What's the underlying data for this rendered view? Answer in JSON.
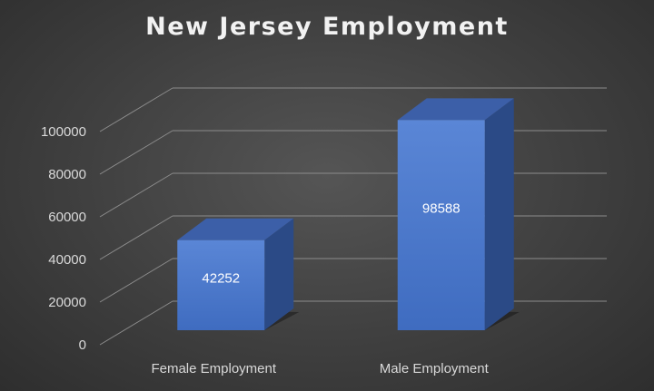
{
  "chart_data": {
    "type": "bar",
    "title": "New Jersey Employment",
    "categories": [
      "Female Employment",
      "Male Employment"
    ],
    "values": [
      42252,
      98588
    ],
    "data_labels": [
      "42252",
      "98588"
    ],
    "yticks": [
      "0",
      "20000",
      "40000",
      "60000",
      "80000",
      "100000"
    ],
    "ylim": [
      0,
      100000
    ],
    "grid": true,
    "style": "3d-column",
    "colors": {
      "bar_front": "#4472c4",
      "bar_top": "#3c5fa8",
      "bar_side": "#2b4a86",
      "gridline": "#8c8c8c",
      "text": "#d9d9d9",
      "title": "#f2f2f2"
    }
  }
}
